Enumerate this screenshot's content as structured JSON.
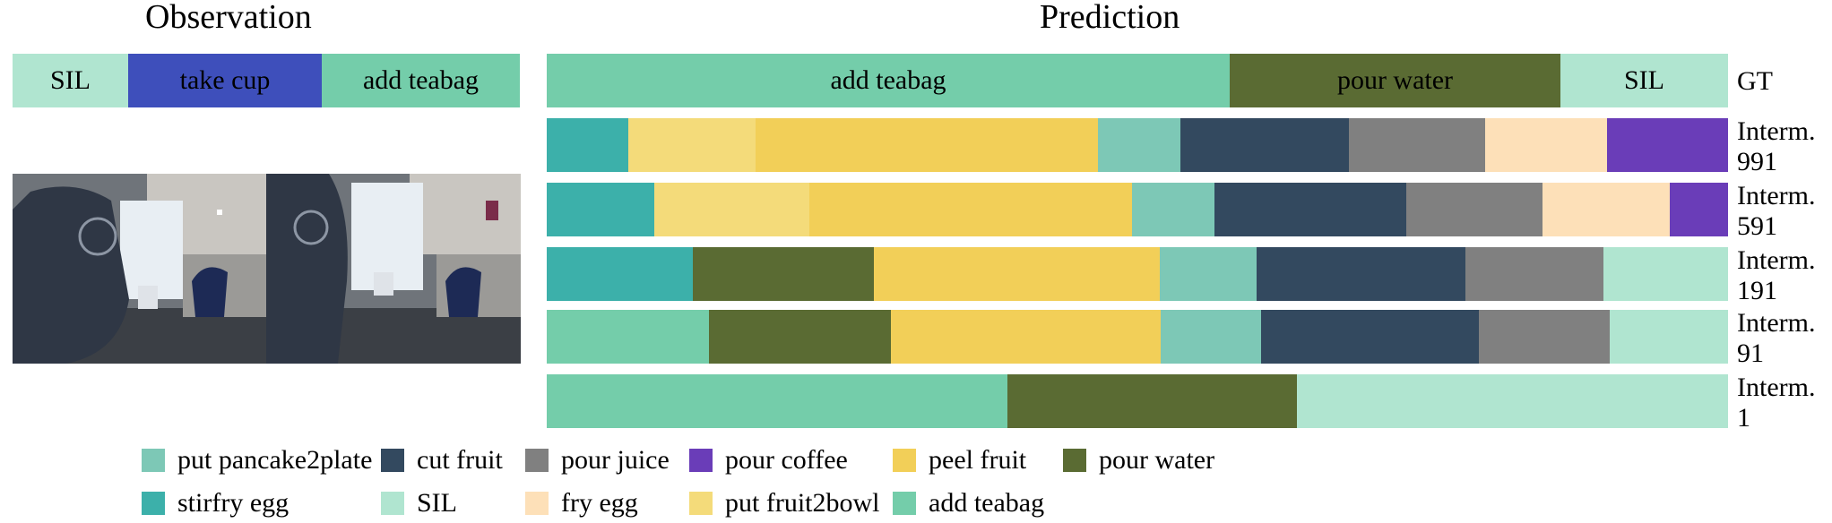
{
  "titles": {
    "observation": "Observation",
    "prediction": "Prediction"
  },
  "colors": {
    "put pancake2plate": "#7dc8b6",
    "cut fruit": "#33495f",
    "pour juice": "#808080",
    "pour coffee": "#6a3db8",
    "peel fruit": "#f2cf58",
    "pour water": "#5a6b33",
    "stirfry egg": "#3cb0aa",
    "SIL": "#b0e5d0",
    "fry egg": "#fde0b8",
    "put fruit2bowl": "#f4db7a",
    "add teabag": "#74cdaa",
    "take cup": "#3e4fbb"
  },
  "observation": {
    "segments": [
      {
        "label": "SIL",
        "action": "SIL",
        "fraction": 0.228
      },
      {
        "label": "take cup",
        "action": "take cup",
        "fraction": 0.382
      },
      {
        "label": "add teabag",
        "action": "add teabag",
        "fraction": 0.39
      }
    ],
    "frames": [
      "video-frame-1",
      "video-frame-2"
    ]
  },
  "prediction_rows": [
    {
      "name": "GT",
      "label_lines": [
        "GT"
      ],
      "segments": [
        {
          "label": "add teabag",
          "action": "add teabag",
          "fraction": 0.578
        },
        {
          "label": "pour water",
          "action": "pour water",
          "fraction": 0.28
        },
        {
          "label": "SIL",
          "action": "SIL",
          "fraction": 0.142
        }
      ]
    },
    {
      "name": "Interm. 991",
      "label_lines": [
        "Interm.",
        "991"
      ],
      "segments": [
        {
          "action": "stirfry egg",
          "fraction": 0.069
        },
        {
          "action": "put fruit2bowl",
          "fraction": 0.108
        },
        {
          "action": "peel fruit",
          "fraction": 0.29
        },
        {
          "action": "put pancake2plate",
          "fraction": 0.07
        },
        {
          "action": "cut fruit",
          "fraction": 0.143
        },
        {
          "action": "pour juice",
          "fraction": 0.115
        },
        {
          "action": "fry egg",
          "fraction": 0.103
        },
        {
          "action": "pour coffee",
          "fraction": 0.102
        }
      ]
    },
    {
      "name": "Interm. 591",
      "label_lines": [
        "Interm.",
        "591"
      ],
      "segments": [
        {
          "action": "stirfry egg",
          "fraction": 0.091
        },
        {
          "action": "put fruit2bowl",
          "fraction": 0.131
        },
        {
          "action": "peel fruit",
          "fraction": 0.273
        },
        {
          "action": "put pancake2plate",
          "fraction": 0.07
        },
        {
          "action": "cut fruit",
          "fraction": 0.162
        },
        {
          "action": "pour juice",
          "fraction": 0.115
        },
        {
          "action": "fry egg",
          "fraction": 0.108
        },
        {
          "action": "pour coffee",
          "fraction": 0.05
        }
      ]
    },
    {
      "name": "Interm. 191",
      "label_lines": [
        "Interm.",
        "191"
      ],
      "segments": [
        {
          "action": "stirfry egg",
          "fraction": 0.124
        },
        {
          "action": "pour water",
          "fraction": 0.153
        },
        {
          "action": "peel fruit",
          "fraction": 0.242
        },
        {
          "action": "put pancake2plate",
          "fraction": 0.082
        },
        {
          "action": "cut fruit",
          "fraction": 0.177
        },
        {
          "action": "pour juice",
          "fraction": 0.117
        },
        {
          "action": "SIL",
          "fraction": 0.105
        }
      ]
    },
    {
      "name": "Interm. 91",
      "label_lines": [
        "Interm.",
        "91"
      ],
      "segments": [
        {
          "action": "add teabag",
          "fraction": 0.137
        },
        {
          "action": "pour water",
          "fraction": 0.154
        },
        {
          "action": "peel fruit",
          "fraction": 0.228
        },
        {
          "action": "put pancake2plate",
          "fraction": 0.085
        },
        {
          "action": "cut fruit",
          "fraction": 0.184
        },
        {
          "action": "pour juice",
          "fraction": 0.111
        },
        {
          "action": "SIL",
          "fraction": 0.101
        }
      ]
    },
    {
      "name": "Interm. 1",
      "label_lines": [
        "Interm.",
        "1"
      ],
      "segments": [
        {
          "action": "add teabag",
          "fraction": 0.39
        },
        {
          "action": "pour water",
          "fraction": 0.245
        },
        {
          "action": "SIL",
          "fraction": 0.365
        }
      ]
    }
  ],
  "legend": [
    [
      "put pancake2plate",
      "cut fruit",
      "pour juice",
      "pour coffee",
      "peel fruit",
      "pour water"
    ],
    [
      "stirfry egg",
      "SIL",
      "fry egg",
      "put fruit2bowl",
      "add teabag"
    ]
  ]
}
